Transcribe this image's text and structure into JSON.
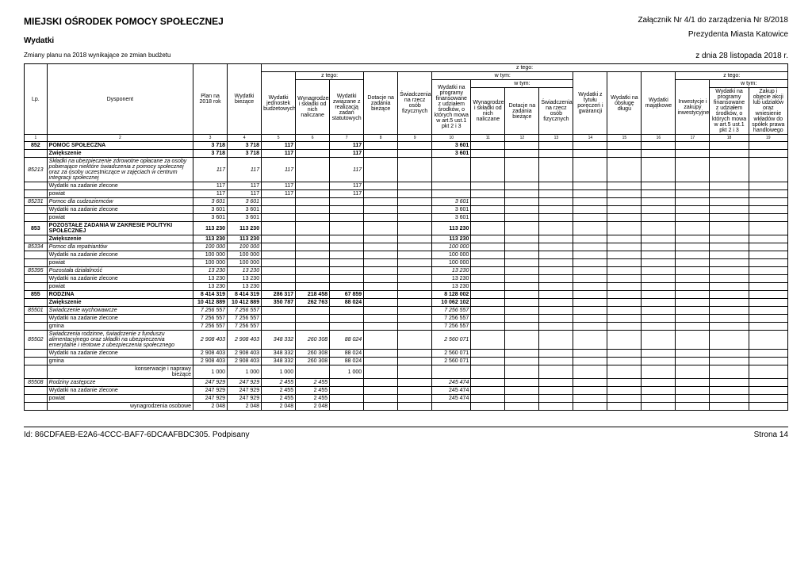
{
  "header": {
    "title": "MIEJSKI OŚRODEK POMOCY SPOŁECZNEJ",
    "attachment_line1": "Załącznik Nr 4/1 do zarządzenia Nr 8/2018",
    "attachment_line2": "Prezydenta Miasta Katowice",
    "attachment_line3": "z dnia 28 listopada 2018 r.",
    "subtitle": "Wydatki",
    "changes": "Zmiany planu na 2018 wynikające ze zmian budżetu"
  },
  "columns": {
    "lp": "Lp.",
    "dysponent": "Dysponent",
    "plan": "Plan na 2018 rok",
    "wydatki_biezace": "Wydatki bieżące",
    "ztego": "z tego:",
    "wtym": "w tym:",
    "wydatki_jednostek": "Wydatki jednostek budżetowych",
    "wynagrodzenia": "Wynagrodzenia i składki od nich naliczane",
    "wydatki_zwiazane": "Wydatki związane z realizacją zadań statutowych",
    "dotacje": "Dotacje na zadania bieżące",
    "swiadczenia": "Świadczenia na rzecz osób fizycznych",
    "wydatki_programy": "Wydatki na programy finansowane z udziałem środków, o których mowa w art.5 ust.1 pkt 2 i 3",
    "wynagrodzenia2": "Wynagrodzenia i składki od nich naliczane",
    "dotacje2": "Dotacje na zadania bieżące",
    "swiadczenia2": "Świadczenia na rzecz osób fizycznych",
    "wydatki_tytulu": "Wydatki z tytułu poręczeń i gwarancji",
    "wydatki_dlugu": "Wydatki na obsługę długu",
    "wydatki_majatkowe": "Wydatki majątkowe",
    "inwestycje": "Inwestycje i zakupy inwestycyjne",
    "wydatki_programy2": "Wydatki na programy finansowane z udziałem środków, o których mowa w art.5 ust.1 pkt 2 i 3",
    "zakup": "Zakup i objęcie akcji lub udziałów oraz wniesienie wkładów do spółek prawa handlowego"
  },
  "rows": [
    {
      "lp": "852",
      "d": "POMOC SPOŁECZNA",
      "c": [
        "3 718",
        "3 718",
        "117",
        "",
        "117",
        "",
        "",
        "3 601",
        "",
        "",
        "",
        "",
        "",
        "",
        "",
        "",
        ""
      ],
      "cls": "bold"
    },
    {
      "lp": "",
      "d": "Zwiększenie",
      "c": [
        "3 718",
        "3 718",
        "117",
        "",
        "117",
        "",
        "",
        "3 601",
        "",
        "",
        "",
        "",
        "",
        "",
        "",
        "",
        ""
      ],
      "cls": "bold"
    },
    {
      "lp": "85213",
      "d": "Składki na ubezpieczenie zdrowotne opłacane za osoby pobierające niektóre świadczenia z pomocy społecznej oraz za osoby uczestniczące w zajęciach w centrum integracji społecznej",
      "c": [
        "117",
        "117",
        "117",
        "",
        "117",
        "",
        "",
        "",
        "",
        "",
        "",
        "",
        "",
        "",
        "",
        "",
        ""
      ],
      "cls": "italic"
    },
    {
      "lp": "",
      "d": "Wydatki na zadanie  zlecone",
      "c": [
        "117",
        "117",
        "117",
        "",
        "117",
        "",
        "",
        "",
        "",
        "",
        "",
        "",
        "",
        "",
        "",
        "",
        ""
      ],
      "cls": ""
    },
    {
      "lp": "",
      "d": "powiat",
      "c": [
        "117",
        "117",
        "117",
        "",
        "117",
        "",
        "",
        "",
        "",
        "",
        "",
        "",
        "",
        "",
        "",
        "",
        ""
      ],
      "cls": ""
    },
    {
      "lp": "85231",
      "d": "Pomoc dla cudzoziemców",
      "c": [
        "3 601",
        "3 601",
        "",
        "",
        "",
        "",
        "",
        "3 601",
        "",
        "",
        "",
        "",
        "",
        "",
        "",
        "",
        ""
      ],
      "cls": "italic"
    },
    {
      "lp": "",
      "d": "Wydatki na zadanie  zlecone",
      "c": [
        "3 601",
        "3 601",
        "",
        "",
        "",
        "",
        "",
        "3 601",
        "",
        "",
        "",
        "",
        "",
        "",
        "",
        "",
        ""
      ],
      "cls": ""
    },
    {
      "lp": "",
      "d": "powiat",
      "c": [
        "3 601",
        "3 601",
        "",
        "",
        "",
        "",
        "",
        "3 601",
        "",
        "",
        "",
        "",
        "",
        "",
        "",
        "",
        ""
      ],
      "cls": ""
    },
    {
      "lp": "853",
      "d": "POZOSTAŁE ZADANIA W ZAKRESIE POLITYKI SPOŁECZNEJ",
      "c": [
        "113 230",
        "113 230",
        "",
        "",
        "",
        "",
        "",
        "113 230",
        "",
        "",
        "",
        "",
        "",
        "",
        "",
        "",
        ""
      ],
      "cls": "bold"
    },
    {
      "lp": "",
      "d": "Zwiększenie",
      "c": [
        "113 230",
        "113 230",
        "",
        "",
        "",
        "",
        "",
        "113 230",
        "",
        "",
        "",
        "",
        "",
        "",
        "",
        "",
        ""
      ],
      "cls": "bold"
    },
    {
      "lp": "85334",
      "d": "Pomoc dla repatriantów",
      "c": [
        "100 000",
        "100 000",
        "",
        "",
        "",
        "",
        "",
        "100 000",
        "",
        "",
        "",
        "",
        "",
        "",
        "",
        "",
        ""
      ],
      "cls": "italic"
    },
    {
      "lp": "",
      "d": "Wydatki na zadanie  zlecone",
      "c": [
        "100 000",
        "100 000",
        "",
        "",
        "",
        "",
        "",
        "100 000",
        "",
        "",
        "",
        "",
        "",
        "",
        "",
        "",
        ""
      ],
      "cls": ""
    },
    {
      "lp": "",
      "d": "powiat",
      "c": [
        "100 000",
        "100 000",
        "",
        "",
        "",
        "",
        "",
        "100 000",
        "",
        "",
        "",
        "",
        "",
        "",
        "",
        "",
        ""
      ],
      "cls": ""
    },
    {
      "lp": "85395",
      "d": "Pozostała działalność",
      "c": [
        "13 230",
        "13 230",
        "",
        "",
        "",
        "",
        "",
        "13 230",
        "",
        "",
        "",
        "",
        "",
        "",
        "",
        "",
        ""
      ],
      "cls": "italic"
    },
    {
      "lp": "",
      "d": "Wydatki na zadanie  zlecone",
      "c": [
        "13 230",
        "13 230",
        "",
        "",
        "",
        "",
        "",
        "13 230",
        "",
        "",
        "",
        "",
        "",
        "",
        "",
        "",
        ""
      ],
      "cls": ""
    },
    {
      "lp": "",
      "d": "powiat",
      "c": [
        "13 230",
        "13 230",
        "",
        "",
        "",
        "",
        "",
        "13 230",
        "",
        "",
        "",
        "",
        "",
        "",
        "",
        "",
        ""
      ],
      "cls": ""
    },
    {
      "lp": "855",
      "d": "RODZINA",
      "c": [
        "8 414 319",
        "8 414 319",
        "286 317",
        "218 458",
        "67 859",
        "",
        "",
        "8 128 002",
        "",
        "",
        "",
        "",
        "",
        "",
        "",
        "",
        ""
      ],
      "cls": "bold"
    },
    {
      "lp": "",
      "d": "Zwiększenie",
      "c": [
        "10 412 889",
        "10 412 889",
        "350 787",
        "262 763",
        "88 024",
        "",
        "",
        "10 062 102",
        "",
        "",
        "",
        "",
        "",
        "",
        "",
        "",
        ""
      ],
      "cls": "bold"
    },
    {
      "lp": "85501",
      "d": "Świadczenie wychowawcze",
      "c": [
        "7 256 557",
        "7 256 557",
        "",
        "",
        "",
        "",
        "",
        "7 256 557",
        "",
        "",
        "",
        "",
        "",
        "",
        "",
        "",
        ""
      ],
      "cls": "italic"
    },
    {
      "lp": "",
      "d": "Wydatki na zadanie  zlecone",
      "c": [
        "7 256 557",
        "7 256 557",
        "",
        "",
        "",
        "",
        "",
        "7 256 557",
        "",
        "",
        "",
        "",
        "",
        "",
        "",
        "",
        ""
      ],
      "cls": ""
    },
    {
      "lp": "",
      "d": "gmina",
      "c": [
        "7 256 557",
        "7 256 557",
        "",
        "",
        "",
        "",
        "",
        "7 256 557",
        "",
        "",
        "",
        "",
        "",
        "",
        "",
        "",
        ""
      ],
      "cls": ""
    },
    {
      "lp": "85502",
      "d": "Świadczenia rodzinne, świadczenie z funduszu alimentacyjnego oraz składki na ubezpieczenia emerytalne i rentowe z ubezpieczenia społecznego",
      "c": [
        "2 908 403",
        "2 908 403",
        "348 332",
        "260 308",
        "88 024",
        "",
        "",
        "2 560 071",
        "",
        "",
        "",
        "",
        "",
        "",
        "",
        "",
        ""
      ],
      "cls": "italic"
    },
    {
      "lp": "",
      "d": "Wydatki na zadanie  zlecone",
      "c": [
        "2 908 403",
        "2 908 403",
        "348 332",
        "260 308",
        "88 024",
        "",
        "",
        "2 560 071",
        "",
        "",
        "",
        "",
        "",
        "",
        "",
        "",
        ""
      ],
      "cls": ""
    },
    {
      "lp": "",
      "d": "gmina",
      "c": [
        "2 908 403",
        "2 908 403",
        "348 332",
        "260 308",
        "88 024",
        "",
        "",
        "2 560 071",
        "",
        "",
        "",
        "",
        "",
        "",
        "",
        "",
        ""
      ],
      "cls": ""
    },
    {
      "lp": "",
      "d": "konserwacje i naprawy bieżące",
      "c": [
        "1 000",
        "1 000",
        "1 000",
        "",
        "1 000",
        "",
        "",
        "",
        "",
        "",
        "",
        "",
        "",
        "",
        "",
        "",
        ""
      ],
      "cls": "",
      "indent": "indent2"
    },
    {
      "lp": "85508",
      "d": "Rodziny zastępcze",
      "c": [
        "247 929",
        "247 929",
        "2 455",
        "2 455",
        "",
        "",
        "",
        "245 474",
        "",
        "",
        "",
        "",
        "",
        "",
        "",
        "",
        ""
      ],
      "cls": "italic"
    },
    {
      "lp": "",
      "d": "Wydatki na zadanie  zlecone",
      "c": [
        "247 929",
        "247 929",
        "2 455",
        "2 455",
        "",
        "",
        "",
        "245 474",
        "",
        "",
        "",
        "",
        "",
        "",
        "",
        "",
        ""
      ],
      "cls": ""
    },
    {
      "lp": "",
      "d": "powiat",
      "c": [
        "247 929",
        "247 929",
        "2 455",
        "2 455",
        "",
        "",
        "",
        "245 474",
        "",
        "",
        "",
        "",
        "",
        "",
        "",
        "",
        ""
      ],
      "cls": ""
    },
    {
      "lp": "",
      "d": "wynagrodzenia osobowe",
      "c": [
        "2 048",
        "2 048",
        "2 048",
        "2 048",
        "",
        "",
        "",
        "",
        "",
        "",
        "",
        "",
        "",
        "",
        "",
        "",
        ""
      ],
      "cls": "",
      "indent": "indent2"
    }
  ],
  "footer": {
    "left": "Id: 86CDFAEB-E2A6-4CCC-BAF7-6DCAAFBDC305. Podpisany",
    "right": "Strona 14"
  }
}
